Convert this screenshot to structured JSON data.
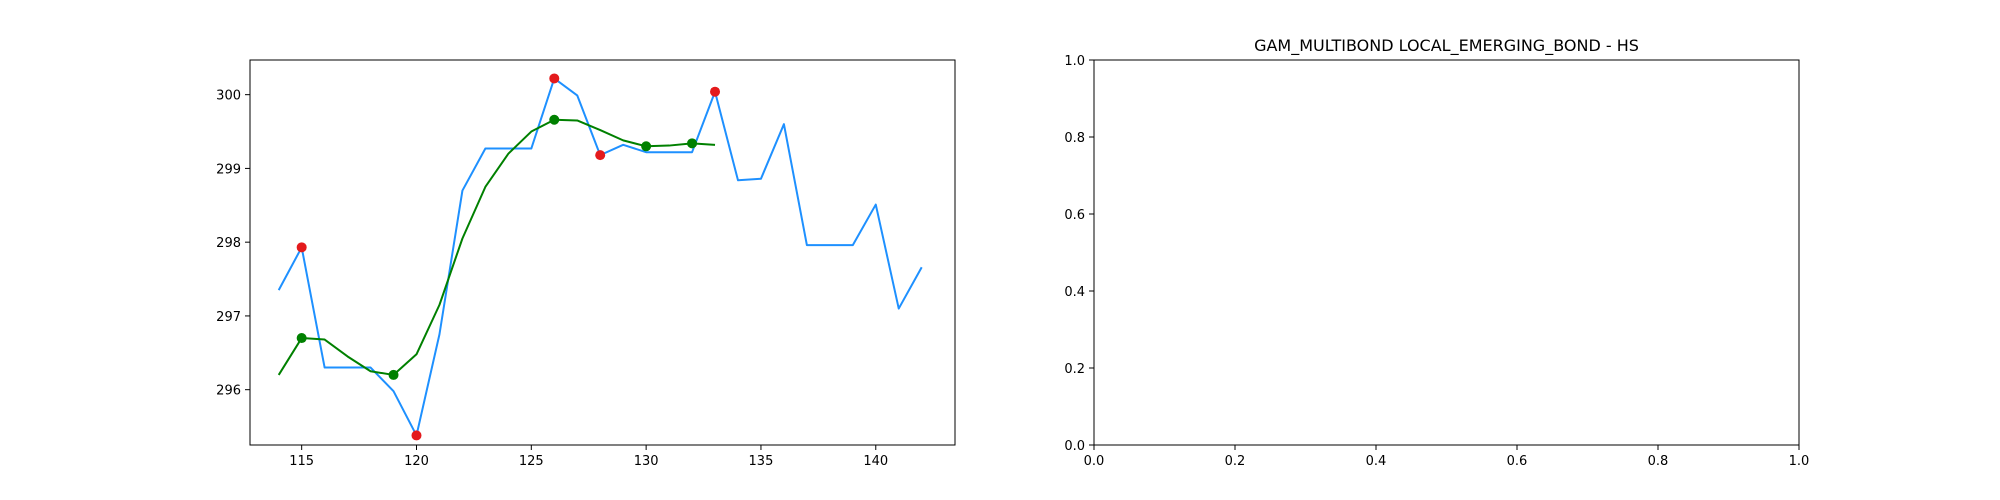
{
  "chart_data": [
    {
      "type": "line",
      "title": "",
      "xlabel": "",
      "ylabel": "",
      "xlim": [
        112.75,
        143.45
      ],
      "ylim": [
        295.25,
        300.47
      ],
      "xticks": [
        115,
        120,
        125,
        130,
        135,
        140
      ],
      "yticks": [
        296,
        297,
        298,
        299,
        300
      ],
      "grid": false,
      "series": [
        {
          "color": "#1e90ff",
          "kind": "line",
          "x": [
            114,
            115,
            116,
            117,
            118,
            119,
            120,
            121,
            122,
            123,
            124,
            125,
            126,
            127,
            128,
            129,
            130,
            131,
            132,
            133,
            134,
            135,
            136,
            137,
            138,
            139,
            140,
            141,
            142
          ],
          "y": [
            297.35,
            297.93,
            296.3,
            296.3,
            296.3,
            295.98,
            295.38,
            296.75,
            298.7,
            299.27,
            299.27,
            299.27,
            300.22,
            299.99,
            299.18,
            299.32,
            299.22,
            299.22,
            299.22,
            300.04,
            298.84,
            298.86,
            299.6,
            297.96,
            297.96,
            297.96,
            298.51,
            297.1,
            297.66
          ]
        },
        {
          "color": "#008000",
          "kind": "line",
          "x": [
            114,
            115,
            116,
            117,
            118,
            119,
            120,
            121,
            122,
            123,
            124,
            125,
            126,
            127,
            128,
            129,
            130,
            131,
            132,
            133
          ],
          "y": [
            296.2,
            296.7,
            296.68,
            296.45,
            296.25,
            296.2,
            296.48,
            297.15,
            298.05,
            298.75,
            299.2,
            299.5,
            299.66,
            299.65,
            299.52,
            299.38,
            299.3,
            299.31,
            299.34,
            299.32
          ]
        },
        {
          "color": "#e41a1c",
          "kind": "scatter",
          "x": [
            115,
            120,
            126,
            128,
            133
          ],
          "y": [
            297.93,
            295.38,
            300.22,
            299.18,
            300.04
          ]
        },
        {
          "color": "#008000",
          "kind": "scatter",
          "x": [
            115,
            119,
            126,
            130,
            132
          ],
          "y": [
            296.7,
            296.2,
            299.66,
            299.3,
            299.34
          ]
        }
      ]
    },
    {
      "type": "line",
      "title": "GAM_MULTIBOND LOCAL_EMERGING_BOND - HS",
      "xlabel": "",
      "ylabel": "",
      "xlim": [
        0,
        1
      ],
      "ylim": [
        0,
        1
      ],
      "xticks": [
        0.0,
        0.2,
        0.4,
        0.6,
        0.8,
        1.0
      ],
      "yticks": [
        0.0,
        0.2,
        0.4,
        0.6,
        0.8,
        1.0
      ],
      "grid": false,
      "series": []
    }
  ]
}
